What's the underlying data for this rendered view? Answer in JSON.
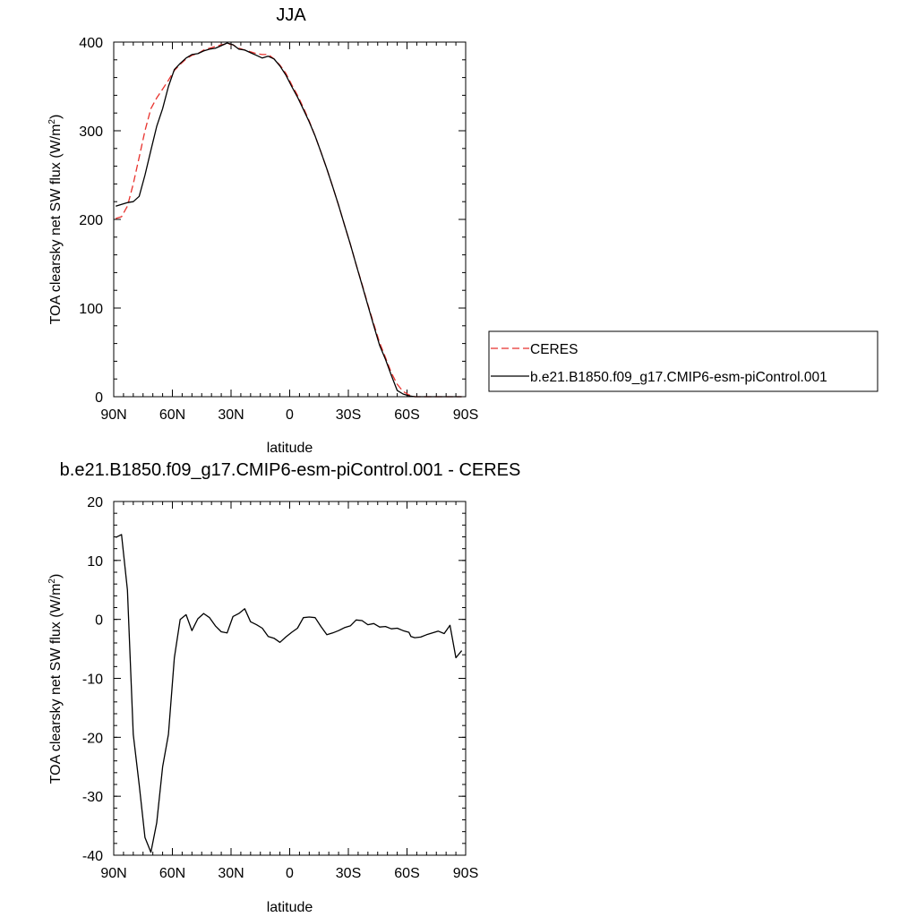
{
  "chart_data": [
    {
      "type": "line",
      "title": "JJA",
      "xlabel": "latitude",
      "ylabel": "TOA clearsky net SW flux (W/m",
      "ylabel_sup": "2",
      "ylabel_tail": ")",
      "xlim": [
        90,
        -90
      ],
      "ylim": [
        0,
        400
      ],
      "xticks": [
        90,
        60,
        30,
        0,
        -30,
        -60,
        -90
      ],
      "xtick_labels": [
        "90N",
        "60N",
        "30N",
        "0",
        "30S",
        "60S",
        "90S"
      ],
      "yticks": [
        0,
        100,
        200,
        300,
        400
      ],
      "ytick_labels": [
        "0",
        "100",
        "200",
        "300",
        "400"
      ],
      "grid": false,
      "legend_position": "right, outside plot",
      "series": [
        {
          "name": "CERES",
          "color": "#e8322d",
          "dash": "dashed",
          "x": [
            89,
            86,
            83,
            80,
            77,
            74,
            71,
            68,
            65,
            62,
            59,
            56,
            53,
            50,
            47,
            44,
            41,
            38,
            35,
            32,
            29,
            26,
            23,
            20,
            17,
            14,
            11,
            8,
            5,
            2,
            -1,
            -4,
            -7,
            -10,
            -13,
            -16,
            -19,
            -22,
            -25,
            -28,
            -31,
            -34,
            -37,
            -40,
            -43,
            -46,
            -49,
            -52,
            -55,
            -58,
            -61,
            -64,
            -67,
            -70,
            -73,
            -76,
            -79,
            -82,
            -85,
            -88
          ],
          "y": [
            201,
            203,
            215,
            240,
            270,
            300,
            325,
            337,
            347,
            357,
            368,
            375,
            381,
            385,
            387,
            391,
            393,
            395,
            397,
            398,
            397,
            393,
            391,
            389,
            387,
            386,
            386,
            381,
            374,
            365,
            352,
            340,
            326,
            311,
            294,
            276,
            257,
            237,
            216,
            194,
            172,
            149,
            127,
            104,
            82,
            61,
            44,
            27,
            14,
            6,
            2,
            0,
            0,
            0,
            0,
            0,
            0,
            0,
            0,
            0
          ]
        },
        {
          "name": "b.e21.B1850.f09_g17.CMIP6-esm-piControl.001",
          "color": "#000000",
          "dash": "solid",
          "x": [
            89,
            86,
            83,
            80,
            77,
            74,
            71,
            68,
            65,
            62,
            59,
            56,
            53,
            50,
            47,
            44,
            41,
            38,
            35,
            32,
            29,
            26,
            23,
            20,
            17,
            14,
            11,
            8,
            5,
            2,
            -1,
            -4,
            -7,
            -10,
            -13,
            -16,
            -19,
            -22,
            -25,
            -28,
            -31,
            -34,
            -37,
            -40,
            -43,
            -46,
            -49,
            -52,
            -55,
            -58,
            -61,
            -64,
            -67,
            -70,
            -73,
            -76,
            -79,
            -82,
            -85,
            -88
          ],
          "y": [
            215,
            217,
            219,
            220,
            226,
            250,
            278,
            305,
            325,
            350,
            369,
            376,
            382,
            386,
            387,
            390,
            392,
            393,
            396,
            399,
            397,
            392,
            391,
            388,
            385,
            382,
            384,
            381,
            373,
            363,
            350,
            338,
            324,
            310,
            294,
            276,
            257,
            237,
            216,
            194,
            172,
            149,
            126,
            103,
            80,
            58,
            42,
            24,
            7,
            3,
            1,
            0,
            0,
            0,
            0,
            0,
            0,
            0,
            0,
            0
          ]
        }
      ]
    },
    {
      "type": "line",
      "title": "b.e21.B1850.f09_g17.CMIP6-esm-piControl.001 - CERES",
      "xlabel": "latitude",
      "ylabel": "TOA clearsky net SW flux (W/m",
      "ylabel_sup": "2",
      "ylabel_tail": ")",
      "xlim": [
        90,
        -90
      ],
      "ylim": [
        -40,
        20
      ],
      "xticks": [
        90,
        60,
        30,
        0,
        -30,
        -60,
        -90
      ],
      "xtick_labels": [
        "90N",
        "60N",
        "30N",
        "0",
        "30S",
        "60S",
        "90S"
      ],
      "yticks": [
        -40,
        -30,
        -20,
        -10,
        0,
        10,
        20
      ],
      "ytick_labels": [
        "-40",
        "-30",
        "-20",
        "-10",
        "0",
        "10",
        "20"
      ],
      "grid": false,
      "series": [
        {
          "name": "",
          "color": "#000000",
          "dash": "solid",
          "x": [
            89,
            86,
            83,
            80,
            77,
            74,
            71,
            68,
            65,
            62,
            59,
            56,
            53,
            50,
            47,
            44,
            41,
            38,
            35,
            32,
            29,
            26,
            23,
            20,
            17,
            14,
            11,
            8,
            5,
            2,
            -1,
            -4,
            -7,
            -10,
            -13,
            -16,
            -19,
            -22,
            -25,
            -28,
            -31,
            -34,
            -37,
            -40,
            -43,
            -46,
            -49,
            -52,
            -55,
            -58,
            -61,
            -62,
            -64,
            -67,
            -70,
            -73,
            -76,
            -79,
            -82,
            -85,
            -88
          ],
          "y": [
            13.9,
            14.4,
            5.0,
            -19.5,
            -28.0,
            -37.0,
            -39.5,
            -34.5,
            -25.0,
            -19.5,
            -6.5,
            0.0,
            0.8,
            -1.9,
            0.1,
            1.0,
            0.3,
            -1.1,
            -2.1,
            -2.3,
            0.5,
            1.0,
            1.8,
            -0.4,
            -0.9,
            -1.5,
            -2.9,
            -3.2,
            -3.9,
            -3.0,
            -2.2,
            -1.5,
            0.3,
            0.4,
            0.3,
            -1.2,
            -2.6,
            -2.3,
            -1.9,
            -1.4,
            -1.1,
            -0.1,
            -0.2,
            -0.9,
            -0.7,
            -1.3,
            -1.2,
            -1.6,
            -1.5,
            -1.9,
            -2.2,
            -2.9,
            -3.1,
            -3.0,
            -2.6,
            -2.3,
            -2.0,
            -2.4,
            -1.0,
            -6.5,
            -5.3
          ]
        }
      ]
    }
  ]
}
